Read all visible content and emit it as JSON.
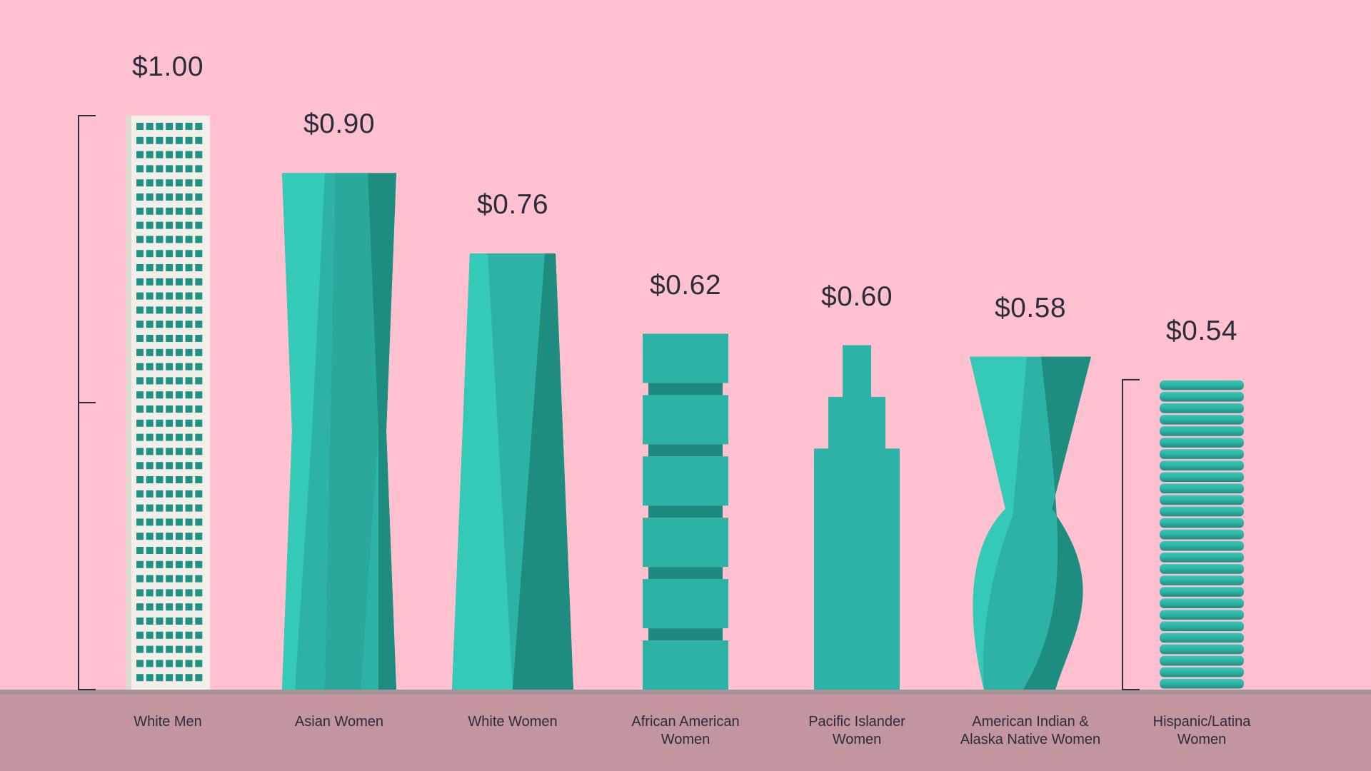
{
  "chart_data": {
    "type": "bar",
    "title": "",
    "xlabel": "",
    "ylabel": "",
    "ylim": [
      0,
      1.0
    ],
    "categories": [
      "White Men",
      "Asian Women",
      "White Women",
      "African American\nWomen",
      "Pacific Islander\nWomen",
      "American Indian &\nAlaska Native Women",
      "Hispanic/Latina\nWomen"
    ],
    "values": [
      1.0,
      0.9,
      0.76,
      0.62,
      0.6,
      0.58,
      0.54
    ],
    "value_labels": [
      "$1.00",
      "$0.90",
      "$0.76",
      "$0.62",
      "$0.60",
      "$0.58",
      "$0.54"
    ],
    "bar_styles": [
      "window-grid",
      "twisted-prism",
      "tapered-prism",
      "stacked-blocks",
      "stepped-spire",
      "helix-twist",
      "stacked-discs"
    ],
    "colors": {
      "background": "#ffc0cf",
      "floor": "#c2959f",
      "floor_edge": "#a69297",
      "teal": "#2db3a5",
      "teal_light": "#35c9b8",
      "teal_dark": "#1f8c80",
      "white_building": "#f2efe9",
      "text": "#2b2d3a"
    },
    "bracket_annotations": [
      "left-bracket-full-height",
      "right-bracket-hispanic-latina-height"
    ],
    "grid": false,
    "legend": "none"
  }
}
